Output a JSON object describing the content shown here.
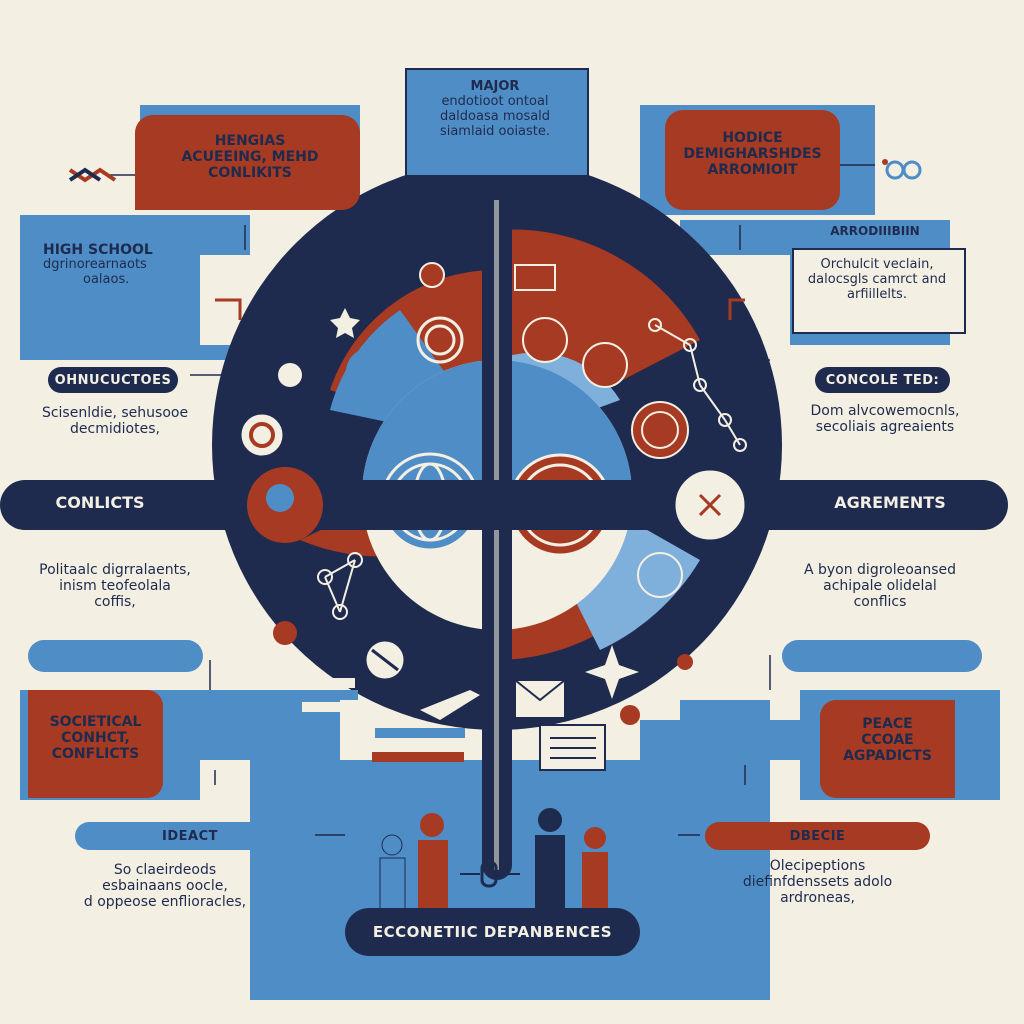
{
  "top_box": {
    "line1": "MAJOR",
    "line2": "endotioot ontoal",
    "line3": "daldoasa mosald",
    "line4": "siamlaid ooiaste."
  },
  "left_top_box": {
    "line1": "HENGIAS",
    "line2": "ACUEEING,  MEHD",
    "line3": "CONLIKITS"
  },
  "right_top_box": {
    "line1": "HODICE",
    "line2": "DEMIGHARSHDES",
    "line3": "ARROMIOIT"
  },
  "left_side_box": {
    "line1": "HIGH SCHOOL",
    "line2": "dgrinorearnaots",
    "line3": "oalaos."
  },
  "right_side_header": "ARRODIIIBIIN",
  "right_side_text": {
    "line1": "Orchulcit veclain,",
    "line2": "dalocsgls camrct and",
    "line3": "arfiillelts."
  },
  "left_pill_1": "OHNUCUCTOES",
  "left_text_1": {
    "line1": "Scisenldie,  sehusooe",
    "line2": "decmidiotes,"
  },
  "right_pill_1": "CONCOLE TED:",
  "right_text_1": {
    "line1": "Dom alvcowemocnls,",
    "line2": "secoliais agreaients"
  },
  "left_band_label": "CONLICTS",
  "right_band_label": "AGREMENTS",
  "left_text_2": {
    "line1": "Politaalc digrralaents,",
    "line2": "inism teofeolala",
    "line3": "coffis,"
  },
  "right_text_2": {
    "line1": "A byon digroleoansed",
    "line2": "achipale olidelal",
    "line3": "conflics"
  },
  "left_red_box": {
    "line1": "SOCIETICAL",
    "line2": "CONHCT,",
    "line3": "CONFLICTS"
  },
  "right_red_box": {
    "line1": "PEACE",
    "line2": "CCOAE",
    "line3": "AGPADICTS"
  },
  "left_pill_2": "IDEACT",
  "left_text_3": {
    "line1": "So claeirdeods",
    "line2": "esbainaans oocle,",
    "line3": "d oppeose enflioracles,"
  },
  "right_pill_2": "DBECIE",
  "right_text_3": {
    "line1": "Olecipeptions",
    "line2": "diefinfdenssets adolo",
    "line3": "ardroneas,"
  },
  "bottom_band_label": "ECCONETIIC DEPANBENCES",
  "colors": {
    "navy": "#1e2b4f",
    "red": "#a63a22",
    "blue": "#4f8dc6",
    "light_blue": "#7fb0dc",
    "cream": "#f3efe2"
  }
}
